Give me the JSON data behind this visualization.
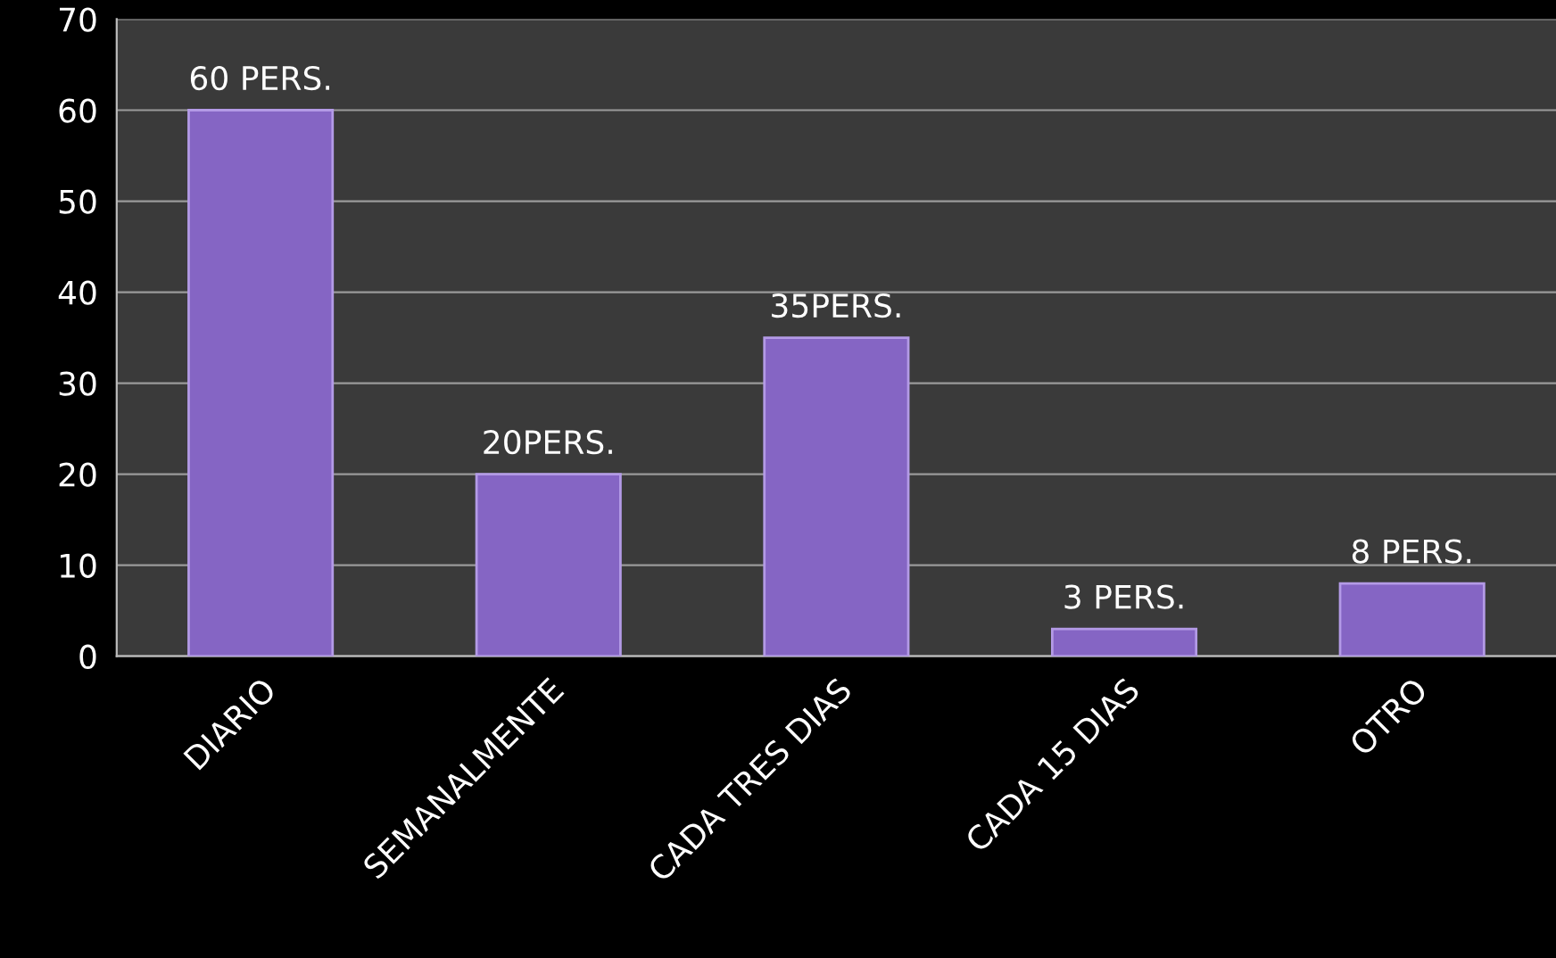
{
  "chart_data": {
    "type": "bar",
    "categories": [
      "DIARIO",
      "SEMANALMENTE",
      "CADA TRES DIAS",
      "CADA 15 DIAS",
      "OTRO"
    ],
    "values": [
      60,
      20,
      35,
      3,
      8
    ],
    "value_labels": [
      "60 PERS.",
      "20PERS.",
      "35PERS.",
      "3 PERS.",
      "8 PERS."
    ],
    "color": "#8565c4",
    "ylim": [
      0,
      70
    ],
    "yticks": [
      0,
      10,
      20,
      30,
      40,
      50,
      60,
      70
    ],
    "grid": "y",
    "legend": false
  }
}
